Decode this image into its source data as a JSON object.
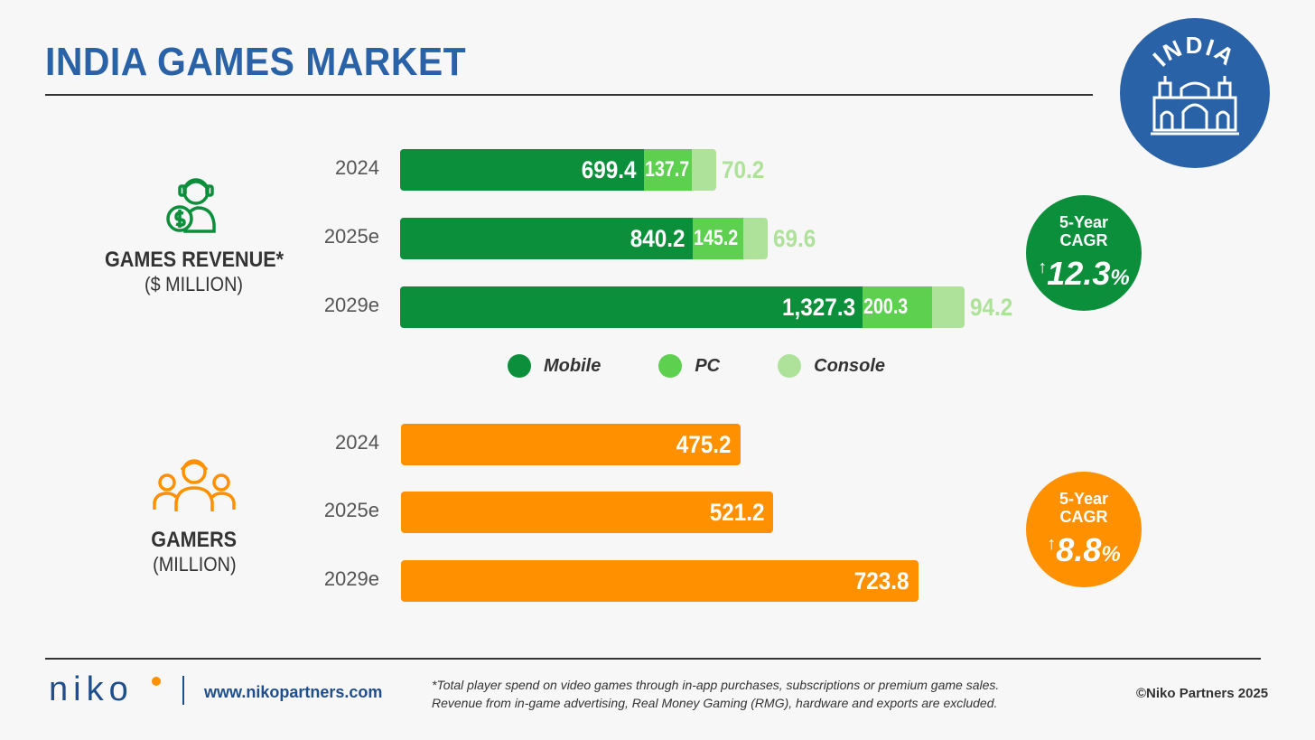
{
  "header": {
    "title": "INDIA GAMES MARKET",
    "badge": "INDIA"
  },
  "revenue_section": {
    "label": "GAMES REVENUE*",
    "unit": "($ MILLION)"
  },
  "gamers_section": {
    "label": "GAMERS",
    "unit": "(MILLION)"
  },
  "legend": {
    "mobile": "Mobile",
    "pc": "PC",
    "console": "Console"
  },
  "revenue_cagr": {
    "line1": "5-Year",
    "line2": "CAGR",
    "value": "12.3",
    "suffix": "%",
    "arrow": "↑"
  },
  "gamers_cagr": {
    "line1": "5-Year",
    "line2": "CAGR",
    "value": "8.8",
    "suffix": "%",
    "arrow": "↑"
  },
  "colors": {
    "mobile": "#0c8f3a",
    "pc": "#5dd04f",
    "console": "#aee29a",
    "gamers": "#ff9000",
    "blue": "#2a62a8"
  },
  "chart_data": [
    {
      "type": "bar",
      "stacked": true,
      "orientation": "horizontal",
      "title": "GAMES REVENUE* ($ MILLION)",
      "categories": [
        "2024",
        "2025e",
        "2029e"
      ],
      "series": [
        {
          "name": "Mobile",
          "values": [
            699.4,
            840.2,
            1327.3
          ],
          "labels": [
            "699.4",
            "840.2",
            "1,327.3"
          ]
        },
        {
          "name": "PC",
          "values": [
            137.7,
            145.2,
            200.3
          ],
          "labels": [
            "137.7",
            "145.2",
            "200.3"
          ]
        },
        {
          "name": "Console",
          "values": [
            70.2,
            69.6,
            94.2
          ],
          "labels": [
            "70.2",
            "69.6",
            "94.2"
          ]
        }
      ]
    },
    {
      "type": "bar",
      "orientation": "horizontal",
      "title": "GAMERS (MILLION)",
      "categories": [
        "2024",
        "2025e",
        "2029e"
      ],
      "values": [
        475.2,
        521.2,
        723.8
      ],
      "labels": [
        "475.2",
        "521.2",
        "723.8"
      ]
    }
  ],
  "footer": {
    "brand": "niko",
    "url": "www.nikopartners.com",
    "footnote_line1": "*Total player spend on video games through in-app purchases, subscriptions or premium game sales.",
    "footnote_line2": "Revenue from in-game advertising, Real Money Gaming (RMG), hardware and exports are excluded.",
    "copyright": "©Niko Partners 2025"
  }
}
